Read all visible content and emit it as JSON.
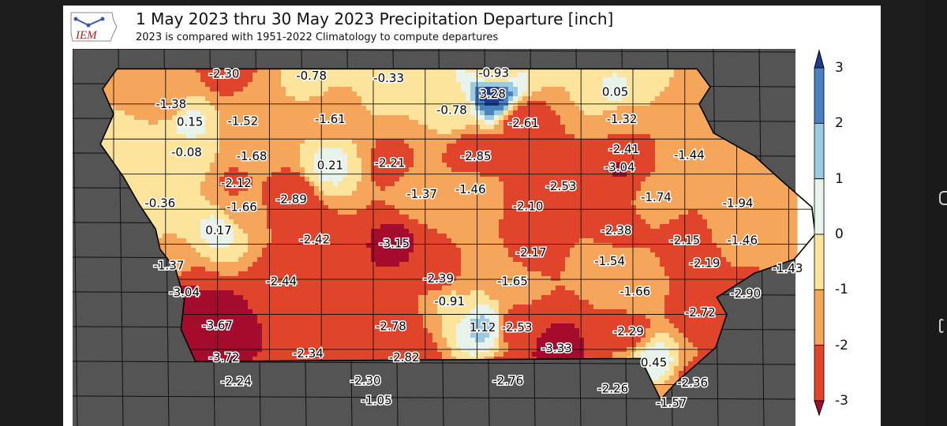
{
  "map": {
    "title": "1 May 2023 thru 30 May 2023 Precipitation Departure [inch]",
    "subtitle": "2023 is compared with 1951-2022 Climatology to compute departures",
    "logo_text": "IEM",
    "colors": {
      "background_region": "#545454",
      "county_line": "#101010",
      "lt_neg3": "#a50b2c",
      "neg3_neg2": "#e0452c",
      "neg2_neg1": "#f5a65b",
      "neg1_0": "#fde49c",
      "0_1": "#e8f3ec",
      "1_2": "#9ccae1",
      "2_3": "#4a81bf",
      "gt_3": "#1e3b8c"
    },
    "colorbar": {
      "ticks": [
        "3",
        "2",
        "1",
        "0",
        "-1",
        "-2",
        "-3"
      ],
      "bins": [
        {
          "range": "2 to 3",
          "color": "#4a81bf"
        },
        {
          "range": "1 to 2",
          "color": "#9ccae1"
        },
        {
          "range": "0 to 1",
          "color": "#e8f3ec"
        },
        {
          "range": "-1 to 0",
          "color": "#fde49c"
        },
        {
          "range": "-2 to -1",
          "color": "#f5a65b"
        },
        {
          "range": "-3 to -2",
          "color": "#e0452c"
        }
      ],
      "extend_top_color": "#1e3b8c",
      "extend_bottom_color": "#a50b2c"
    },
    "stations": [
      {
        "label": "-2.30",
        "value": -2.3,
        "lon": -95.5,
        "lat": 43.45
      },
      {
        "label": "-0.78",
        "value": -0.78,
        "lon": -94.71,
        "lat": 43.43
      },
      {
        "label": "-0.33",
        "value": -0.33,
        "lon": -94.01,
        "lat": 43.41
      },
      {
        "label": "-0.93",
        "value": -0.93,
        "lon": -93.06,
        "lat": 43.46
      },
      {
        "label": "3.28",
        "value": 3.28,
        "lon": -93.07,
        "lat": 43.25
      },
      {
        "label": "0.05",
        "value": 0.05,
        "lon": -91.96,
        "lat": 43.27
      },
      {
        "label": "-1.38",
        "value": -1.38,
        "lon": -95.98,
        "lat": 43.15
      },
      {
        "label": "0.15",
        "value": 0.15,
        "lon": -95.81,
        "lat": 42.97
      },
      {
        "label": "-1.52",
        "value": -1.52,
        "lon": -95.33,
        "lat": 42.98
      },
      {
        "label": "-1.61",
        "value": -1.61,
        "lon": -94.54,
        "lat": 43.0
      },
      {
        "label": "-0.78",
        "value": -0.78,
        "lon": -93.44,
        "lat": 43.09
      },
      {
        "label": "-2.61",
        "value": -2.61,
        "lon": -92.79,
        "lat": 42.96
      },
      {
        "label": "-1.32",
        "value": -1.32,
        "lon": -91.9,
        "lat": 43.0
      },
      {
        "label": "-0.08",
        "value": -0.08,
        "lon": -95.84,
        "lat": 42.67
      },
      {
        "label": "-1.68",
        "value": -1.68,
        "lon": -95.25,
        "lat": 42.63
      },
      {
        "label": "0.21",
        "value": 0.21,
        "lon": -94.54,
        "lat": 42.54
      },
      {
        "label": "-2.21",
        "value": -2.21,
        "lon": -94.0,
        "lat": 42.56
      },
      {
        "label": "-2.85",
        "value": -2.85,
        "lon": -93.22,
        "lat": 42.63
      },
      {
        "label": "-2.41",
        "value": -2.41,
        "lon": -91.88,
        "lat": 42.7
      },
      {
        "label": "-3.04",
        "value": -3.04,
        "lon": -91.92,
        "lat": 42.52
      },
      {
        "label": "-1.44",
        "value": -1.44,
        "lon": -91.29,
        "lat": 42.64
      },
      {
        "label": "-2.12",
        "value": -2.12,
        "lon": -95.39,
        "lat": 42.36
      },
      {
        "label": "-2.89",
        "value": -2.89,
        "lon": -94.89,
        "lat": 42.2
      },
      {
        "label": "-1.37",
        "value": -1.37,
        "lon": -93.71,
        "lat": 42.25
      },
      {
        "label": "-1.46",
        "value": -1.46,
        "lon": -93.27,
        "lat": 42.3
      },
      {
        "label": "-2.53",
        "value": -2.53,
        "lon": -92.45,
        "lat": 42.33
      },
      {
        "label": "-2.10",
        "value": -2.1,
        "lon": -92.75,
        "lat": 42.13
      },
      {
        "label": "-1.74",
        "value": -1.74,
        "lon": -91.59,
        "lat": 42.22
      },
      {
        "label": "-1.94",
        "value": -1.94,
        "lon": -90.85,
        "lat": 42.16
      },
      {
        "label": "-0.36",
        "value": -0.36,
        "lon": -96.08,
        "lat": 42.16
      },
      {
        "label": "-1.66",
        "value": -1.66,
        "lon": -95.34,
        "lat": 42.12
      },
      {
        "label": "0.17",
        "value": 0.17,
        "lon": -95.55,
        "lat": 41.89
      },
      {
        "label": "-2.42",
        "value": -2.42,
        "lon": -94.68,
        "lat": 41.8
      },
      {
        "label": "-3.15",
        "value": -3.15,
        "lon": -93.96,
        "lat": 41.76
      },
      {
        "label": "-2.38",
        "value": -2.38,
        "lon": -91.95,
        "lat": 41.89
      },
      {
        "label": "-2.15",
        "value": -2.15,
        "lon": -91.33,
        "lat": 41.79
      },
      {
        "label": "-1.46",
        "value": -1.46,
        "lon": -90.81,
        "lat": 41.79
      },
      {
        "label": "-2.17",
        "value": -2.17,
        "lon": -92.72,
        "lat": 41.67
      },
      {
        "label": "-1.54",
        "value": -1.54,
        "lon": -92.01,
        "lat": 41.58
      },
      {
        "label": "-2.19",
        "value": -2.19,
        "lon": -91.15,
        "lat": 41.56
      },
      {
        "label": "-1.43",
        "value": -1.43,
        "lon": -90.4,
        "lat": 41.51
      },
      {
        "label": "-1.37",
        "value": -1.37,
        "lon": -96.0,
        "lat": 41.54
      },
      {
        "label": "-2.44",
        "value": -2.44,
        "lon": -94.98,
        "lat": 41.38
      },
      {
        "label": "-2.39",
        "value": -2.39,
        "lon": -93.56,
        "lat": 41.41
      },
      {
        "label": "-1.65",
        "value": -1.65,
        "lon": -92.89,
        "lat": 41.38
      },
      {
        "label": "-1.66",
        "value": -1.66,
        "lon": -91.78,
        "lat": 41.28
      },
      {
        "label": "-2.90",
        "value": -2.9,
        "lon": -90.78,
        "lat": 41.26
      },
      {
        "label": "-3.04",
        "value": -3.04,
        "lon": -95.86,
        "lat": 41.27
      },
      {
        "label": "-0.91",
        "value": -0.91,
        "lon": -93.46,
        "lat": 41.18
      },
      {
        "label": "-2.72",
        "value": -2.72,
        "lon": -91.19,
        "lat": 41.07
      },
      {
        "label": "-3.67",
        "value": -3.67,
        "lon": -95.56,
        "lat": 40.94
      },
      {
        "label": "-2.78",
        "value": -2.78,
        "lon": -93.99,
        "lat": 40.93
      },
      {
        "label": "1.12",
        "value": 1.12,
        "lon": -93.16,
        "lat": 40.92
      },
      {
        "label": "-2.53",
        "value": -2.53,
        "lon": -92.85,
        "lat": 40.92
      },
      {
        "label": "-2.29",
        "value": -2.29,
        "lon": -91.84,
        "lat": 40.88
      },
      {
        "label": "-3.33",
        "value": -3.33,
        "lon": -92.49,
        "lat": 40.71
      },
      {
        "label": "-3.72",
        "value": -3.72,
        "lon": -95.5,
        "lat": 40.62
      },
      {
        "label": "-2.34",
        "value": -2.34,
        "lon": -94.74,
        "lat": 40.66
      },
      {
        "label": "-2.82",
        "value": -2.82,
        "lon": -93.87,
        "lat": 40.62
      },
      {
        "label": "0.45",
        "value": 0.45,
        "lon": -91.61,
        "lat": 40.57
      },
      {
        "label": "-2.24",
        "value": -2.24,
        "lon": -95.39,
        "lat": 40.38
      },
      {
        "label": "-2.30",
        "value": -2.3,
        "lon": -94.22,
        "lat": 40.39
      },
      {
        "label": "-2.76",
        "value": -2.76,
        "lon": -92.93,
        "lat": 40.39
      },
      {
        "label": "-2.36",
        "value": -2.36,
        "lon": -91.26,
        "lat": 40.37
      },
      {
        "label": "-2.26",
        "value": -2.26,
        "lon": -91.98,
        "lat": 40.31
      },
      {
        "label": "-1.05",
        "value": -1.05,
        "lon": -94.12,
        "lat": 40.19
      },
      {
        "label": "-1.57",
        "value": -1.57,
        "lon": -91.45,
        "lat": 40.17
      }
    ]
  }
}
